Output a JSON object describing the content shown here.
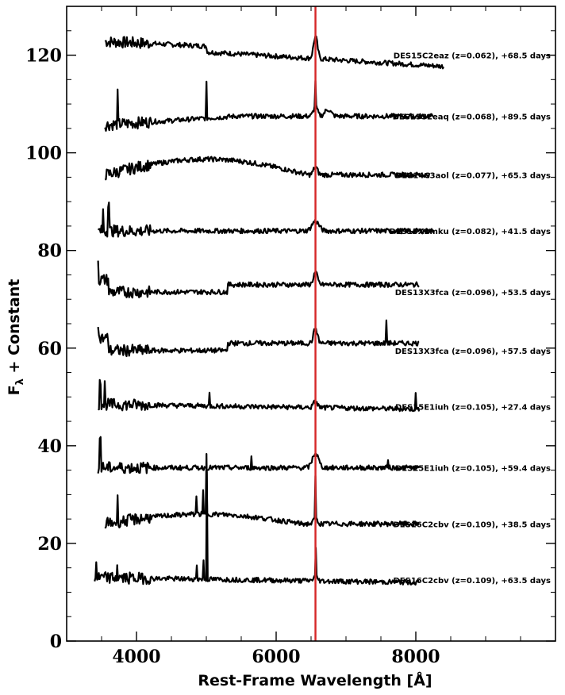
{
  "chart_data": {
    "type": "line",
    "title": "",
    "xlabel": "Rest-Frame Wavelength [Å]",
    "ylabel_main": "F",
    "ylabel_sub": "λ",
    "ylabel_rest": " + Constant",
    "xlim": [
      3000,
      10000
    ],
    "ylim": [
      0,
      130
    ],
    "x_ticks": [
      4000,
      6000,
      8000
    ],
    "y_ticks": [
      0,
      20,
      40,
      60,
      80,
      100,
      120
    ],
    "grid": false,
    "reference_line": {
      "x": 6563,
      "color": "#d62728"
    },
    "series": [
      {
        "name": "DES15C2eaz (z=0.062), +68.5 days",
        "x_range": [
          3550,
          8400
        ],
        "baseline": 120,
        "slope": -0.32,
        "bump": 1.0,
        "shape": "decline",
        "peaks": [
          [
            6563,
            4.5,
            40
          ]
        ],
        "spikes": []
      },
      {
        "name": "DES15S2eaq (z=0.068), +89.5 days",
        "x_range": [
          3550,
          8250
        ],
        "baseline": 107.5,
        "slope": 0.0,
        "bump": 1.2,
        "shape": "rise",
        "peaks": [
          [
            6563,
            2.0,
            40
          ],
          [
            6740,
            1.4,
            60
          ]
        ],
        "spikes": [
          [
            3727,
            6.0
          ],
          [
            5007,
            7.0
          ],
          [
            6563,
            5.5
          ]
        ]
      },
      {
        "name": "DES14C3aol (z=0.077), +65.3 days",
        "x_range": [
          3550,
          8200
        ],
        "baseline": 95.5,
        "slope": 0.0,
        "bump": 1.6,
        "shape": "hump",
        "peaks": [
          [
            6563,
            1.6,
            40
          ]
        ],
        "spikes": []
      },
      {
        "name": "DES15X2mku (z=0.082), +41.5 days",
        "x_range": [
          3450,
          8250
        ],
        "baseline": 84,
        "slope": 0.0,
        "bump": 0.8,
        "shape": "flat",
        "peaks": [
          [
            6563,
            2.0,
            70
          ]
        ],
        "spikes": [
          [
            3600,
            6.0
          ],
          [
            3520,
            4.0
          ]
        ]
      },
      {
        "name": "DES13X3fca (z=0.096), +53.5 days",
        "x_range": [
          3450,
          8050
        ],
        "baseline": 71.5,
        "slope": 0.0,
        "bump": 0.8,
        "shape": "step",
        "peaks": [
          [
            6563,
            2.5,
            40
          ]
        ],
        "spikes": [
          [
            3450,
            4.0
          ]
        ]
      },
      {
        "name": "DES13X3fca (z=0.096), +57.5 days",
        "x_range": [
          3450,
          8050
        ],
        "baseline": 59.5,
        "slope": 0.0,
        "bump": 0.8,
        "shape": "step",
        "peaks": [
          [
            6563,
            3.0,
            40
          ]
        ],
        "spikes": [
          [
            3450,
            3.5
          ],
          [
            7580,
            5.0
          ]
        ]
      },
      {
        "name": "DES15E1iuh (z=0.105), +27.4 days",
        "x_range": [
          3450,
          8050
        ],
        "baseline": 48,
        "slope": -0.1,
        "bump": 0.5,
        "shape": "flat",
        "peaks": [
          [
            6563,
            1.2,
            40
          ]
        ],
        "spikes": [
          [
            3480,
            5.0
          ],
          [
            3550,
            4.0
          ],
          [
            5050,
            2.5
          ],
          [
            8000,
            3.0
          ]
        ]
      },
      {
        "name": "DES15E1iuh (z=0.105), +59.4 days",
        "x_range": [
          3450,
          8050
        ],
        "baseline": 35.5,
        "slope": 0.0,
        "bump": 0.4,
        "shape": "flat",
        "peaks": [
          [
            6563,
            3.0,
            60
          ]
        ],
        "spikes": [
          [
            3480,
            6.0
          ],
          [
            5650,
            2.0
          ],
          [
            7600,
            2.0
          ]
        ]
      },
      {
        "name": "DES16C2cbv (z=0.109), +38.5 days",
        "x_range": [
          3550,
          8050
        ],
        "baseline": 24,
        "slope": 0.0,
        "bump": 1.0,
        "shape": "hump",
        "peaks": [
          [
            6563,
            1.0,
            40
          ]
        ],
        "spikes": [
          [
            3727,
            4.5
          ],
          [
            4861,
            4.0
          ],
          [
            4959,
            4.5
          ],
          [
            5007,
            12.0
          ],
          [
            6563,
            9.0
          ]
        ]
      },
      {
        "name": "DES16C2cbv (z=0.109), +63.5 days",
        "x_range": [
          3400,
          8050
        ],
        "baseline": 12.5,
        "slope": -0.1,
        "bump": 0.5,
        "shape": "flat",
        "peaks": [
          [
            6563,
            1.0,
            40
          ]
        ],
        "spikes": [
          [
            3420,
            3.0
          ],
          [
            3727,
            3.0
          ],
          [
            4861,
            3.0
          ],
          [
            4959,
            4.0
          ],
          [
            5007,
            22.0
          ],
          [
            6563,
            5.5
          ]
        ]
      }
    ]
  }
}
